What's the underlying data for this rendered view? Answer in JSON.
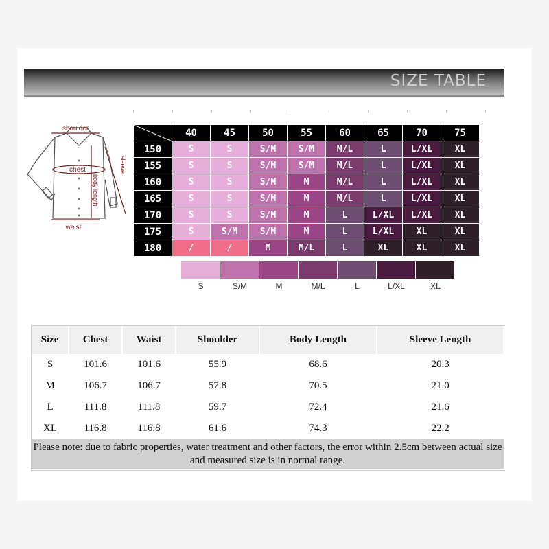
{
  "banner": {
    "title": "SIZE TABLE"
  },
  "diagram": {
    "labels": {
      "shoulder": "shoulder",
      "chest": "chest",
      "sleeve": "sleeve",
      "body_length": "body length",
      "waist": "waist"
    }
  },
  "grid": {
    "columns": [
      "40",
      "45",
      "50",
      "55",
      "60",
      "65",
      "70",
      "75"
    ],
    "rows": [
      {
        "h": "150",
        "c": [
          "S",
          "S",
          "S/M",
          "S/M",
          "M/L",
          "L",
          "L/XL",
          "XL"
        ]
      },
      {
        "h": "155",
        "c": [
          "S",
          "S",
          "S/M",
          "S/M",
          "M/L",
          "L",
          "L/XL",
          "XL"
        ]
      },
      {
        "h": "160",
        "c": [
          "S",
          "S",
          "S/M",
          "M",
          "M/L",
          "L",
          "L/XL",
          "XL"
        ]
      },
      {
        "h": "165",
        "c": [
          "S",
          "S",
          "S/M",
          "M",
          "M/L",
          "L",
          "L/XL",
          "XL"
        ]
      },
      {
        "h": "170",
        "c": [
          "S",
          "S",
          "S/M",
          "M",
          "L",
          "L/XL",
          "L/XL",
          "XL"
        ]
      },
      {
        "h": "175",
        "c": [
          "S",
          "S/M",
          "S/M",
          "M",
          "L",
          "L/XL",
          "XL",
          "XL"
        ]
      },
      {
        "h": "180",
        "c": [
          "/",
          "/",
          "M",
          "M/L",
          "L",
          "XL",
          "XL",
          "XL"
        ]
      }
    ]
  },
  "colors": {
    "S": "#e6aed8",
    "S/M": "#bf72ab",
    "M": "#9a4585",
    "M/L": "#7b3b6c",
    "L": "#6e4e73",
    "L/XL": "#4b1a40",
    "XL": "#2e1f29",
    "/": "#f06e88"
  },
  "legend": [
    "S",
    "S/M",
    "M",
    "M/L",
    "L",
    "L/XL",
    "XL"
  ],
  "spec": {
    "headers": [
      "Size",
      "Chest",
      "Waist",
      "Shoulder",
      "Body Length",
      "Sleeve Length"
    ],
    "rows": [
      [
        "S",
        "101.6",
        "101.6",
        "55.9",
        "68.6",
        "20.3"
      ],
      [
        "M",
        "106.7",
        "106.7",
        "57.8",
        "70.5",
        "21.0"
      ],
      [
        "L",
        "111.8",
        "111.8",
        "59.7",
        "72.4",
        "21.6"
      ],
      [
        "XL",
        "116.8",
        "116.8",
        "61.6",
        "74.3",
        "22.2"
      ]
    ],
    "note_line1": "Please note: due to fabric properties, water treatment and other factors, the error within 2.5cm between actual size",
    "note_line2": "and measured size is in normal range."
  }
}
